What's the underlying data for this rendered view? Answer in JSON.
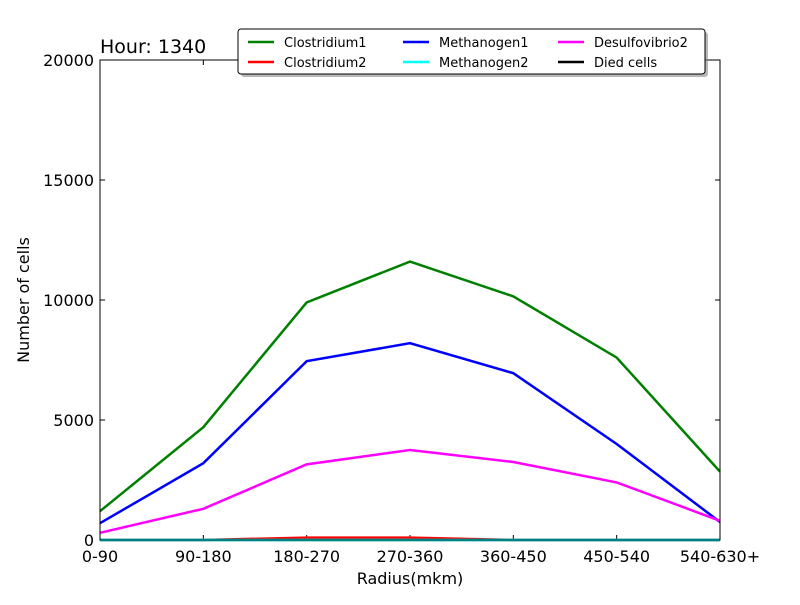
{
  "chart_data": {
    "type": "line",
    "title": "Hour: 1340",
    "xlabel": "Radius(mkm)",
    "ylabel": "Number of cells",
    "categories": [
      "0-90",
      "90-180",
      "180-270",
      "270-360",
      "360-450",
      "450-540",
      "540-630+"
    ],
    "ylim": [
      0,
      20000
    ],
    "yticks": [
      0,
      5000,
      10000,
      15000,
      20000
    ],
    "grid": false,
    "legend_position": "top-center",
    "series": [
      {
        "name": "Clostridium1",
        "color": "#008000",
        "values": [
          1200,
          4700,
          9900,
          11600,
          10150,
          7600,
          2850
        ]
      },
      {
        "name": "Clostridium2",
        "color": "#ff0000",
        "values": [
          0,
          0,
          100,
          100,
          0,
          0,
          0
        ]
      },
      {
        "name": "Died cells",
        "color": "#000000",
        "values": [
          0,
          0,
          0,
          0,
          0,
          0,
          0
        ]
      },
      {
        "name": "Methanogen1",
        "color": "#0000ff",
        "values": [
          700,
          3200,
          7450,
          8200,
          6950,
          4000,
          750
        ]
      },
      {
        "name": "Methanogen2",
        "color": "#00ffff",
        "values": [
          0,
          0,
          0,
          0,
          0,
          0,
          0
        ]
      },
      {
        "name": "Desulfovibrio2",
        "color": "#ff00ff",
        "values": [
          300,
          1300,
          3150,
          3750,
          3250,
          2400,
          800
        ]
      }
    ],
    "legend_order": [
      "Clostridium1",
      "Clostridium2",
      "Methanogen1",
      "Methanogen2",
      "Desulfovibrio2",
      "Died cells"
    ]
  }
}
